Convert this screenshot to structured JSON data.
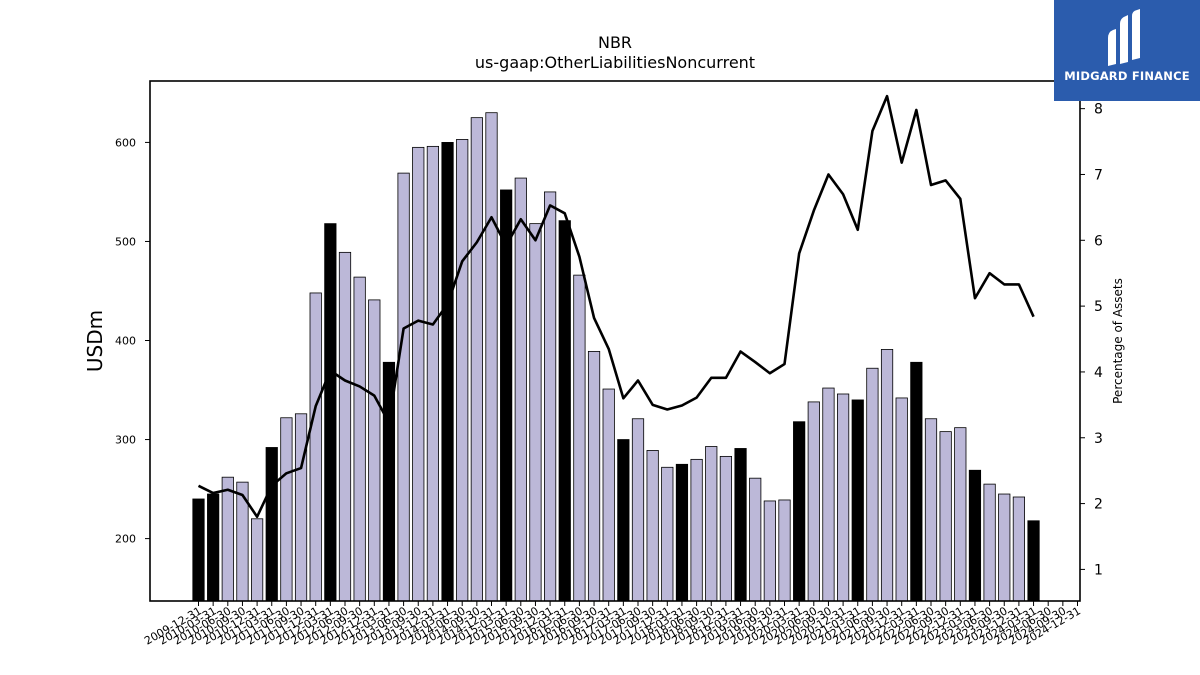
{
  "logo": {
    "text": "MIDGARD FINANCE"
  },
  "chart_data": {
    "type": "bar",
    "title": "NBR",
    "subtitle": "us-gaap:OtherLiabilitiesNoncurrent",
    "ylabel": "USDm",
    "y2label": "Percentage of Assets",
    "ylim": [
      137,
      662
    ],
    "y2lim": [
      0.52,
      8.42
    ],
    "yticks": [
      200,
      300,
      400,
      500,
      600
    ],
    "y2ticks": [
      1,
      2,
      3,
      4,
      5,
      6,
      7,
      8
    ],
    "colors": {
      "bar_annual": "#000000",
      "bar_quarter": "#bcb8d8",
      "line": "#000000"
    },
    "categories": [
      "2009-12-31",
      "2010-03-31",
      "2010-06-30",
      "2010-09-30",
      "2010-12-31",
      "2011-03-31",
      "2011-06-30",
      "2011-09-30",
      "2011-12-31",
      "2012-03-31",
      "2012-06-30",
      "2012-09-30",
      "2012-12-31",
      "2013-03-31",
      "2013-06-30",
      "2013-09-30",
      "2013-12-31",
      "2014-03-31",
      "2014-06-30",
      "2014-09-30",
      "2014-12-31",
      "2015-03-31",
      "2015-06-30",
      "2015-09-30",
      "2015-12-31",
      "2016-03-31",
      "2016-06-30",
      "2016-09-30",
      "2016-12-31",
      "2017-03-31",
      "2017-06-30",
      "2017-09-30",
      "2017-12-31",
      "2018-03-31",
      "2018-06-30",
      "2018-09-30",
      "2018-12-31",
      "2019-03-31",
      "2019-06-30",
      "2019-09-30",
      "2019-12-31",
      "2020-03-31",
      "2020-06-30",
      "2020-09-30",
      "2020-12-31",
      "2021-03-31",
      "2021-06-30",
      "2021-09-30",
      "2021-12-31",
      "2022-03-31",
      "2022-06-30",
      "2022-09-30",
      "2022-12-31",
      "2023-03-31",
      "2023-06-30",
      "2023-09-30",
      "2023-12-31",
      "2024-03-31",
      "2024-06-30",
      "2024-09-30",
      "2024-12-31"
    ],
    "tick_labels": [
      "2009-12-31",
      "2010-03-31",
      "2010-06-30",
      "2010-09-30",
      "2010-12-31",
      "2011-03-31",
      "2011-06-30",
      "2011-09-30",
      "2011-12-31",
      "2012-03-31",
      "2012-06-30",
      "2012-09-30",
      "2012-12-31",
      "2013-03-31",
      "2013-06-30",
      "2013-09-30",
      "2013-12-31",
      "2014-03-31",
      "2014-06-30",
      "2014-09-30",
      "2014-12-31",
      "2015-03-31",
      "2015-06-30",
      "2015-09-30",
      "2015-12-31",
      "2016-03-31",
      "2016-06-30",
      "2016-09-30",
      "2016-12-31",
      "2017-03-31",
      "2017-06-30",
      "2017-09-30",
      "2017-12-31",
      "2018-03-31",
      "2018-06-30",
      "2018-09-30",
      "2018-12-31",
      "2019-03-31",
      "2019-06-30",
      "2019-09-30",
      "2019-12-31",
      "2020-03-31",
      "2020-06-30",
      "2020-09-30",
      "2020-12-31",
      "2021-03-31",
      "2021-06-30",
      "2021-09-30",
      "2021-12-31",
      "2022-03-31",
      "2022-06-30",
      "2022-09-30",
      "2022-12-31",
      "2023-03-31",
      "2023-06-30",
      "2023-09-30",
      "2023-12-31",
      "2024-03-31",
      "2024-06-30",
      "2024-09-30",
      "2024-12-31"
    ],
    "annual_flags": [
      true,
      true,
      false,
      false,
      false,
      true,
      false,
      false,
      false,
      true,
      false,
      false,
      false,
      true,
      false,
      false,
      false,
      true,
      false,
      false,
      false,
      true,
      false,
      false,
      false,
      true,
      false,
      false,
      false,
      true,
      false,
      false,
      false,
      true,
      false,
      false,
      false,
      true,
      false,
      false,
      false,
      true,
      false,
      false,
      false,
      true,
      false,
      false,
      false,
      true,
      false,
      false,
      false,
      true,
      false,
      false,
      false,
      true,
      false,
      false,
      false
    ],
    "series": [
      {
        "name": "USDm",
        "kind": "bar",
        "values": [
          240,
          245,
          262,
          257,
          220,
          292,
          322,
          326,
          448,
          518,
          489,
          464,
          441,
          378,
          569,
          595,
          596,
          600,
          603,
          625,
          630,
          552,
          564,
          518,
          550,
          521,
          466,
          389,
          351,
          300,
          321,
          289,
          272,
          275,
          280,
          293,
          283,
          291,
          261,
          238,
          239,
          318,
          338,
          352,
          346,
          340,
          372,
          391,
          342,
          378,
          321,
          308,
          312,
          269,
          255,
          245,
          242,
          218,
          null,
          null,
          null
        ]
      },
      {
        "name": "Percentage of Assets",
        "kind": "line",
        "values": [
          2.27,
          2.16,
          2.21,
          2.13,
          1.8,
          2.27,
          2.46,
          2.54,
          3.48,
          4.02,
          3.87,
          3.78,
          3.64,
          3.23,
          4.66,
          4.78,
          4.72,
          5.03,
          5.68,
          5.97,
          6.35,
          5.92,
          6.32,
          6.0,
          6.53,
          6.41,
          5.75,
          4.82,
          4.35,
          3.6,
          3.87,
          3.5,
          3.43,
          3.49,
          3.61,
          3.91,
          3.91,
          4.31,
          4.15,
          3.98,
          4.12,
          5.8,
          6.45,
          7.0,
          6.7,
          6.16,
          7.66,
          8.19,
          7.18,
          7.98,
          6.84,
          6.91,
          6.63,
          5.12,
          5.5,
          5.33,
          5.33,
          4.84,
          null,
          null,
          null
        ]
      }
    ]
  }
}
